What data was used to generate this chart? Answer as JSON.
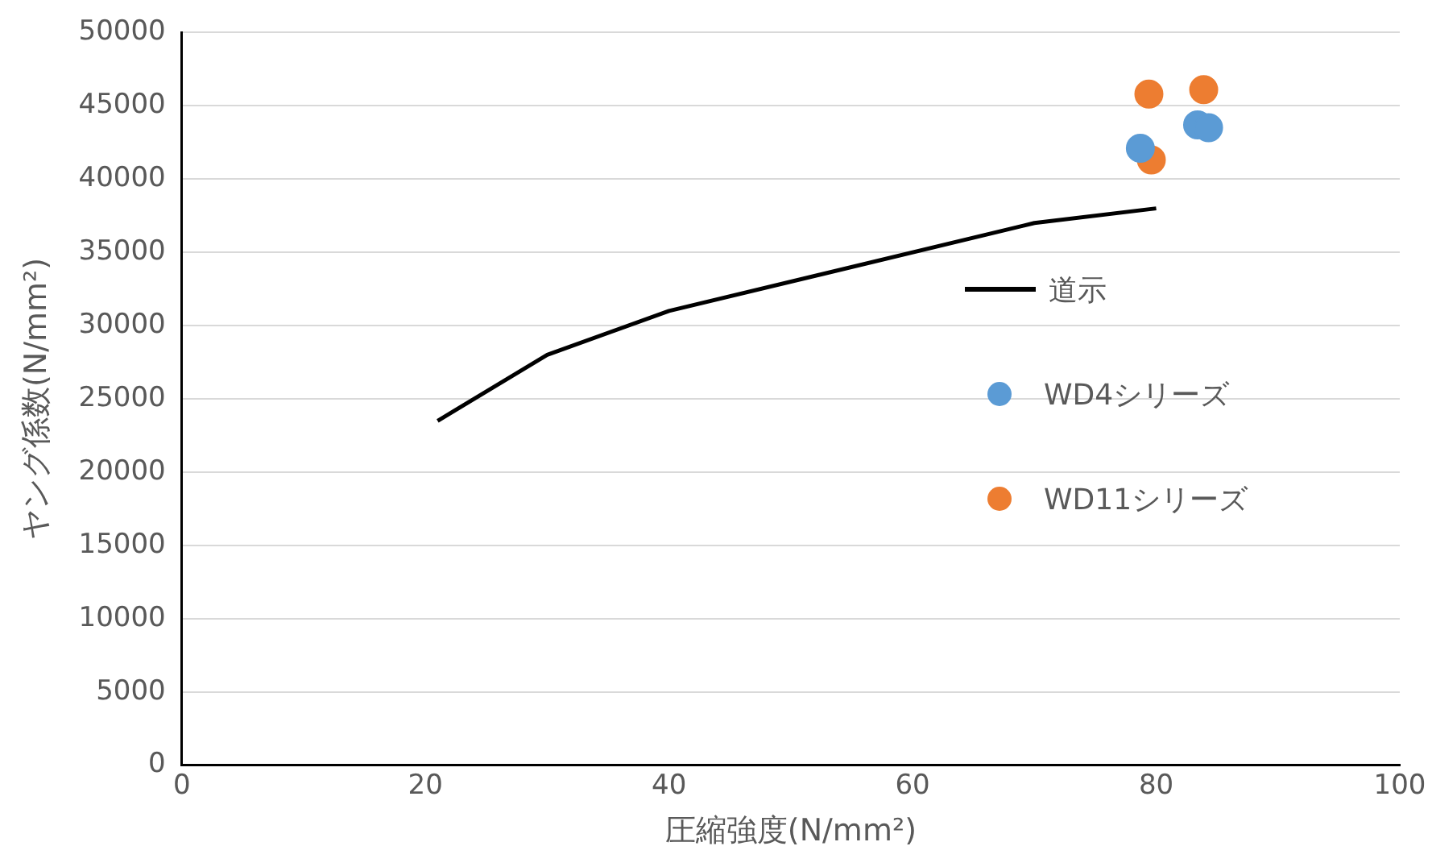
{
  "chart_data": {
    "type": "scatter",
    "xlabel": "圧縮強度(N/mm²)",
    "ylabel": "ヤング係数(N/mm²)",
    "xlim": [
      0,
      100
    ],
    "xticks": [
      0,
      20,
      40,
      60,
      80,
      100
    ],
    "ylim": [
      0,
      50000
    ],
    "yticks": [
      0,
      5000,
      10000,
      15000,
      20000,
      25000,
      30000,
      35000,
      40000,
      45000,
      50000
    ],
    "grid": "y",
    "legend": "right",
    "marker": "circle",
    "series": [
      {
        "name": "道示",
        "type": "line",
        "color": "#000000",
        "marker": "none",
        "x": [
          21,
          30,
          40,
          70,
          80
        ],
        "values": [
          23500,
          28000,
          31000,
          37000,
          38000
        ]
      },
      {
        "name": "WD4シリーズ",
        "color": "#5b9bd5",
        "x": [
          78.7,
          83.4,
          84.3
        ],
        "values": [
          42100,
          43700,
          43500
        ]
      },
      {
        "name": "WD11シリーズ",
        "color": "#ed7d31",
        "x": [
          79.4,
          83.9,
          79.6
        ],
        "values": [
          45800,
          46100,
          41300
        ]
      }
    ]
  }
}
